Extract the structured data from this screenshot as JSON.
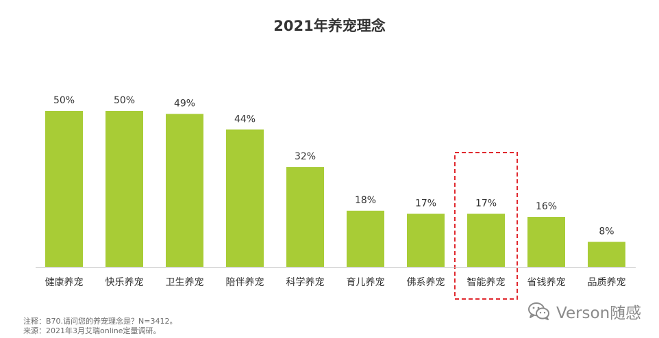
{
  "chart_data": {
    "type": "bar",
    "title": "2021年养宠理念",
    "categories": [
      "健康养宠",
      "快乐养宠",
      "卫生养宠",
      "陪伴养宠",
      "科学养宠",
      "育儿养宠",
      "佛系养宠",
      "智能养宠",
      "省钱养宠",
      "品质养宠"
    ],
    "values": [
      50,
      50,
      49,
      44,
      32,
      18,
      17,
      17,
      16,
      8
    ],
    "value_labels": [
      "50%",
      "50%",
      "49%",
      "44%",
      "32%",
      "18%",
      "17%",
      "17%",
      "16%",
      "8%"
    ],
    "unit": "%",
    "ylim": [
      0,
      50
    ],
    "grid": false,
    "highlighted_category": "智能养宠",
    "colors": {
      "bar": "#a8cc36",
      "highlight_box": "#e0282e",
      "axis": "#bfbfbf"
    }
  },
  "footnotes": {
    "note": "注释：B70.请问您的养宠理念是？N=3412。",
    "source": "来源：2021年3月艾瑞online定量调研。"
  },
  "watermark": {
    "text": "Verson随感",
    "icon": "wechat-icon"
  }
}
